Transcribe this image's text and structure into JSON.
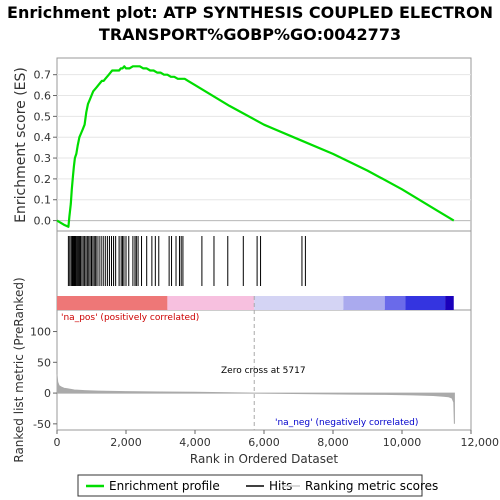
{
  "title_line1": "Enrichment plot: ATP SYNTHESIS COUPLED ELECTRON",
  "title_line2": "TRANSPORT%GOBP%GO:0042773",
  "chart_data": {
    "type": "line",
    "es_ylabel": "Enrichment score (ES)",
    "es_ylim": [
      -0.05,
      0.78
    ],
    "es_yticks": [
      0.0,
      0.1,
      0.2,
      0.3,
      0.4,
      0.5,
      0.6,
      0.7
    ],
    "es_ytick_labels": [
      "0.0",
      "0.1",
      "0.2",
      "0.3",
      "0.4",
      "0.5",
      "0.6",
      "0.7"
    ],
    "xlim": [
      0,
      12000
    ],
    "xticks": [
      0,
      2000,
      4000,
      6000,
      8000,
      10000,
      12000
    ],
    "xtick_labels": [
      "0",
      "2,000",
      "4,000",
      "6,000",
      "8,000",
      "10,000",
      "12,000"
    ],
    "xlabel": "Rank in Ordered Dataset",
    "metric_ylabel": "Ranked list metric (PreRanked)",
    "metric_ylim": [
      -60,
      135
    ],
    "metric_yticks": [
      -50,
      0,
      50,
      100
    ],
    "metric_ytick_labels": [
      "-50",
      "0",
      "50",
      "100"
    ],
    "enrichment_profile": {
      "name": "Enrichment profile",
      "color": "#00dd00",
      "x": [
        0,
        200,
        330,
        360,
        400,
        430,
        460,
        490,
        520,
        560,
        600,
        650,
        700,
        750,
        800,
        850,
        900,
        950,
        1000,
        1050,
        1100,
        1150,
        1200,
        1250,
        1300,
        1350,
        1400,
        1450,
        1500,
        1550,
        1600,
        1650,
        1700,
        1750,
        1800,
        1850,
        1900,
        1950,
        2000,
        2100,
        2200,
        2300,
        2400,
        2500,
        2600,
        2700,
        2800,
        2900,
        3000,
        3100,
        3200,
        3300,
        3400,
        3500,
        3600,
        3700,
        3800,
        4000,
        5000,
        6000,
        7000,
        8000,
        9000,
        10000,
        11000,
        11500
      ],
      "y": [
        0.0,
        -0.02,
        -0.03,
        0.02,
        0.08,
        0.15,
        0.21,
        0.26,
        0.3,
        0.32,
        0.36,
        0.4,
        0.42,
        0.44,
        0.46,
        0.52,
        0.56,
        0.58,
        0.6,
        0.62,
        0.63,
        0.64,
        0.65,
        0.66,
        0.67,
        0.67,
        0.68,
        0.69,
        0.7,
        0.71,
        0.72,
        0.72,
        0.72,
        0.72,
        0.72,
        0.73,
        0.73,
        0.74,
        0.73,
        0.73,
        0.74,
        0.74,
        0.74,
        0.73,
        0.73,
        0.72,
        0.72,
        0.71,
        0.71,
        0.7,
        0.7,
        0.69,
        0.69,
        0.68,
        0.68,
        0.68,
        0.67,
        0.65,
        0.55,
        0.46,
        0.39,
        0.32,
        0.24,
        0.15,
        0.05,
        0.0
      ]
    },
    "hits": {
      "name": "Hits",
      "x": [
        330,
        370,
        410,
        440,
        460,
        480,
        500,
        520,
        540,
        560,
        590,
        620,
        650,
        680,
        720,
        760,
        800,
        840,
        880,
        920,
        960,
        1000,
        1040,
        1080,
        1120,
        1160,
        1220,
        1280,
        1340,
        1400,
        1460,
        1520,
        1580,
        1640,
        1700,
        1800,
        1860,
        1900,
        1940,
        2000,
        2080,
        2200,
        2260,
        2300,
        2350,
        2450,
        2600,
        2750,
        2850,
        2950,
        3250,
        3320,
        3450,
        3550,
        3600,
        3650,
        4200,
        4550,
        4950,
        5400,
        5800,
        5900,
        7100,
        7200
      ]
    },
    "ranking_metric": {
      "name": "Ranking metric scores",
      "color": "#aaaaaa",
      "x": [
        0,
        20,
        60,
        120,
        200,
        300,
        500,
        800,
        1200,
        2000,
        3000,
        4000,
        5000,
        5717,
        6500,
        7500,
        8500,
        9500,
        10300,
        10900,
        11200,
        11350,
        11450,
        11500,
        11520
      ],
      "y": [
        30,
        18,
        12,
        10,
        8,
        7,
        5,
        4,
        3.2,
        2.4,
        1.8,
        1.2,
        0.6,
        0,
        -0.6,
        -1.1,
        -1.6,
        -2.2,
        -3,
        -4,
        -5,
        -6,
        -8,
        -15,
        -50
      ]
    },
    "zero_cross_x": 5717,
    "zero_cross_label": "Zero cross at 5717",
    "pos_label": "'na_pos' (positively correlated)",
    "neg_label": "'na_neg' (negatively correlated)",
    "colorbar_segments": [
      {
        "x0": 0,
        "x1": 3200,
        "color": "#ee7777"
      },
      {
        "x0": 3200,
        "x1": 5717,
        "color": "#f7c0df"
      },
      {
        "x0": 5717,
        "x1": 8300,
        "color": "#d4d4f4"
      },
      {
        "x0": 8300,
        "x1": 9500,
        "color": "#aaaaee"
      },
      {
        "x0": 9500,
        "x1": 10100,
        "color": "#6a6aea"
      },
      {
        "x0": 10100,
        "x1": 11250,
        "color": "#3434e0"
      },
      {
        "x0": 11250,
        "x1": 11500,
        "color": "#1a00bb"
      }
    ],
    "legend": {
      "placement": "bottom",
      "items": [
        {
          "label": "Enrichment profile",
          "color": "#00dd00"
        },
        {
          "label": "Hits",
          "color": "#000000"
        },
        {
          "label": "Ranking metric scores",
          "color": "#cccccc"
        }
      ]
    }
  }
}
